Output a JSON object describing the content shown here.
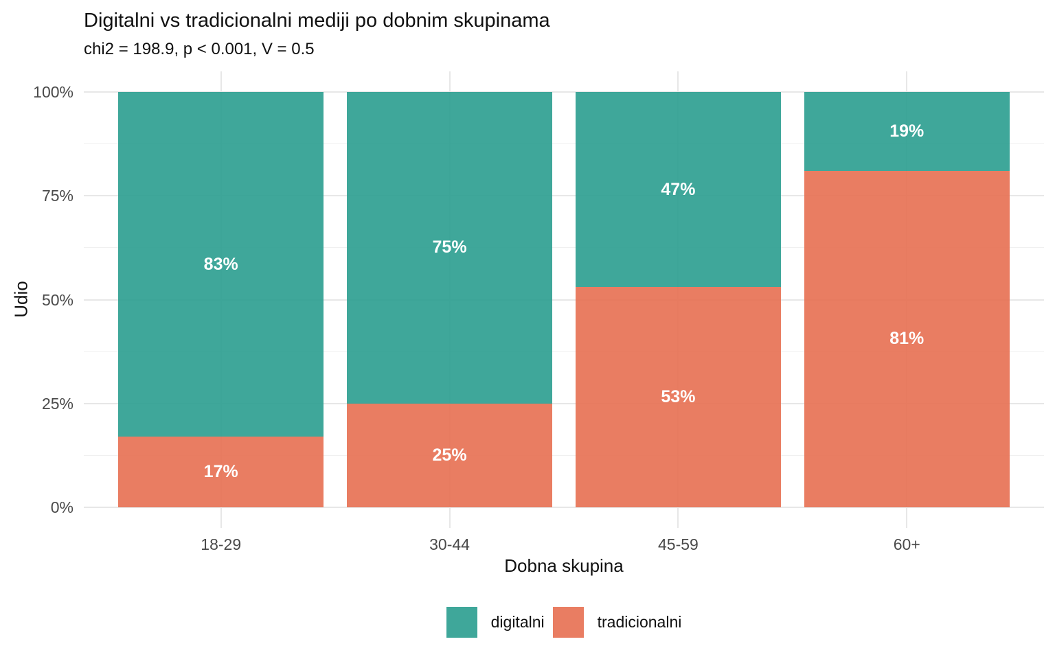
{
  "chart_data": {
    "type": "bar",
    "variant": "stacked-percent",
    "title": "Digitalni vs tradicionalni mediji po dobnim skupinama",
    "subtitle": "chi2 = 198.9, p < 0.001, V = 0.5",
    "xlabel": "Dobna skupina",
    "ylabel": "Udio",
    "categories": [
      "18-29",
      "30-44",
      "45-59",
      "60+"
    ],
    "series": [
      {
        "name": "digitalni",
        "color": "#2a9d8f",
        "values": [
          83,
          75,
          47,
          19
        ],
        "labels": [
          "83%",
          "75%",
          "47%",
          "19%"
        ]
      },
      {
        "name": "tradicionalni",
        "color": "#e76f51",
        "values": [
          17,
          25,
          53,
          81
        ],
        "labels": [
          "17%",
          "25%",
          "53%",
          "81%"
        ]
      }
    ],
    "bar_alpha": 0.9,
    "ylim": [
      0,
      100
    ],
    "ytick_values": [
      0,
      25,
      50,
      75,
      100
    ],
    "ytick_labels": [
      "0%",
      "25%",
      "50%",
      "75%",
      "100%"
    ],
    "y_minor_values": [
      12.5,
      37.5,
      62.5,
      87.5
    ],
    "grid": "horizontal major+minor, vertical major at category centers, light gray on white",
    "legend_position": "bottom-center",
    "colors": {
      "background": "#ffffff",
      "grid_major": "#e7e7e7",
      "grid_minor": "#f0f0f0",
      "axis_text": "#4a4a4a",
      "text": "#111111",
      "bar_label_text": "#ffffff"
    }
  }
}
